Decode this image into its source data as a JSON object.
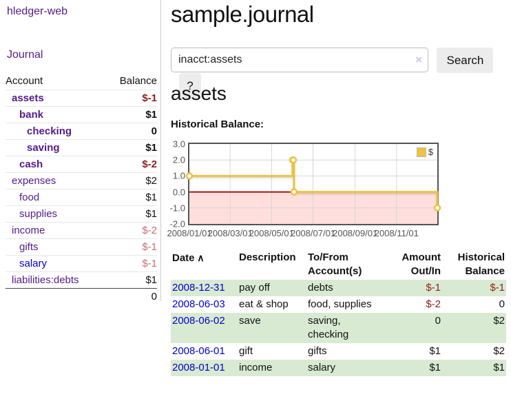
{
  "colors": {
    "link_visited_purple": "#551a8b",
    "link_unvisited_blue": "#0000cc",
    "negative_strong_red": "#8f1d1d",
    "negative_muted_red": "#c86e6e",
    "row_highlight_green": "#d9ead3",
    "chart_line_gold": "#edc240",
    "chart_negative_region_pink": "#ffdfdd",
    "chart_zero_line_red": "#aa1111",
    "chart_grid_gray": "#d6d6d6",
    "chart_border_gray": "#545454"
  },
  "sidebar": {
    "brand": "hledger-web",
    "nav_journal": "Journal",
    "table": {
      "headers": {
        "account": "Account",
        "balance": "Balance"
      },
      "rows": [
        {
          "name": "assets",
          "balance": "$-1",
          "depth": 1,
          "bold": true,
          "balance_tone": "neg-strong",
          "link_tone": "visited"
        },
        {
          "name": "bank",
          "balance": "$1",
          "depth": 2,
          "bold": true,
          "balance_tone": "default",
          "link_tone": "visited"
        },
        {
          "name": "checking",
          "balance": "0",
          "depth": 3,
          "bold": true,
          "balance_tone": "default",
          "link_tone": "visited"
        },
        {
          "name": "saving",
          "balance": "$1",
          "depth": 3,
          "bold": true,
          "balance_tone": "default",
          "link_tone": "visited"
        },
        {
          "name": "cash",
          "balance": "$-2",
          "depth": 2,
          "bold": true,
          "balance_tone": "neg-strong",
          "link_tone": "visited"
        },
        {
          "name": "expenses",
          "balance": "$2",
          "depth": 1,
          "bold": false,
          "balance_tone": "default",
          "link_tone": "visited"
        },
        {
          "name": "food",
          "balance": "$1",
          "depth": 2,
          "bold": false,
          "balance_tone": "default",
          "link_tone": "visited"
        },
        {
          "name": "supplies",
          "balance": "$1",
          "depth": 2,
          "bold": false,
          "balance_tone": "default",
          "link_tone": "visited"
        },
        {
          "name": "income",
          "balance": "$-2",
          "depth": 1,
          "bold": false,
          "balance_tone": "neg-muted",
          "link_tone": "visited"
        },
        {
          "name": "gifts",
          "balance": "$-1",
          "depth": 2,
          "bold": false,
          "balance_tone": "neg-muted",
          "link_tone": "visited"
        },
        {
          "name": "salary",
          "balance": "$-1",
          "depth": 2,
          "bold": false,
          "balance_tone": "neg-muted",
          "link_tone": "unvisited"
        },
        {
          "name": "liabilities:debts",
          "balance": "$1",
          "depth": 1,
          "bold": false,
          "balance_tone": "default",
          "link_tone": "visited"
        }
      ],
      "total": "0"
    }
  },
  "main": {
    "title": "sample.journal",
    "search": {
      "value": "inacct:assets",
      "clear_icon": "×",
      "search_button": "Search",
      "help_button": "?"
    },
    "account_heading": "assets",
    "chart_title": "Historical Balance:"
  },
  "chart_data": {
    "type": "line",
    "step": true,
    "title": "Historical Balance",
    "x_type": "date",
    "xlim": [
      "2008-01-01",
      "2008-12-31"
    ],
    "ylim": [
      -2.0,
      3.0
    ],
    "yticks": [
      {
        "v": 3,
        "label": "3.0"
      },
      {
        "v": 2,
        "label": "2.0"
      },
      {
        "v": 1,
        "label": "1.0"
      },
      {
        "v": 0,
        "label": "0.0"
      },
      {
        "v": -1,
        "label": "-1.0"
      },
      {
        "v": -2,
        "label": "-2.0"
      }
    ],
    "xticks": [
      {
        "v": "2008-01-01",
        "label": "2008/01/01"
      },
      {
        "v": "2008-03-01",
        "label": "2008/03/01"
      },
      {
        "v": "2008-05-01",
        "label": "2008/05/01"
      },
      {
        "v": "2008-07-01",
        "label": "2008/07/01"
      },
      {
        "v": "2008-09-01",
        "label": "2008/09/01"
      },
      {
        "v": "2008-11-01",
        "label": "2008/11/01"
      }
    ],
    "series": [
      {
        "name": "$",
        "color": "#edc240",
        "points": [
          {
            "x": "2008-01-01",
            "y": 1
          },
          {
            "x": "2008-06-01",
            "y": 2
          },
          {
            "x": "2008-06-02",
            "y": 2
          },
          {
            "x": "2008-06-03",
            "y": 0
          },
          {
            "x": "2008-12-31",
            "y": -1
          }
        ]
      }
    ],
    "legend": {
      "position": "top-right",
      "entries": [
        {
          "label": "$",
          "color": "#edc240"
        }
      ]
    },
    "negative_region": {
      "from": 0,
      "to": -2,
      "color": "#ffdfdd"
    },
    "zero_line_color": "#aa1111",
    "grid": true
  },
  "register": {
    "columns": [
      {
        "label": "Date",
        "sort_indicator": "∧",
        "align": "left"
      },
      {
        "label": "Description",
        "align": "left"
      },
      {
        "label": "To/From Account(s)",
        "align": "left"
      },
      {
        "label": "Amount Out/In",
        "align": "right"
      },
      {
        "label": "Historical Balance",
        "align": "right"
      }
    ],
    "rows": [
      {
        "date": "2008-12-31",
        "description": "pay off",
        "accounts": "debts",
        "amount": "$-1",
        "amount_tone": "neg-strong",
        "balance": "$-1",
        "balance_tone": "neg-strong",
        "highlight": true
      },
      {
        "date": "2008-06-03",
        "description": "eat & shop",
        "accounts": "food, supplies",
        "amount": "$-2",
        "amount_tone": "neg-strong",
        "balance": "0",
        "balance_tone": "default",
        "highlight": false
      },
      {
        "date": "2008-06-02",
        "description": "save",
        "accounts": "saving, checking",
        "amount": "0",
        "amount_tone": "default",
        "balance": "$2",
        "balance_tone": "default",
        "highlight": true
      },
      {
        "date": "2008-06-01",
        "description": "gift",
        "accounts": "gifts",
        "amount": "$1",
        "amount_tone": "default",
        "balance": "$2",
        "balance_tone": "default",
        "highlight": false
      },
      {
        "date": "2008-01-01",
        "description": "income",
        "accounts": "salary",
        "amount": "$1",
        "amount_tone": "default",
        "balance": "$1",
        "balance_tone": "default",
        "highlight": true
      }
    ]
  }
}
